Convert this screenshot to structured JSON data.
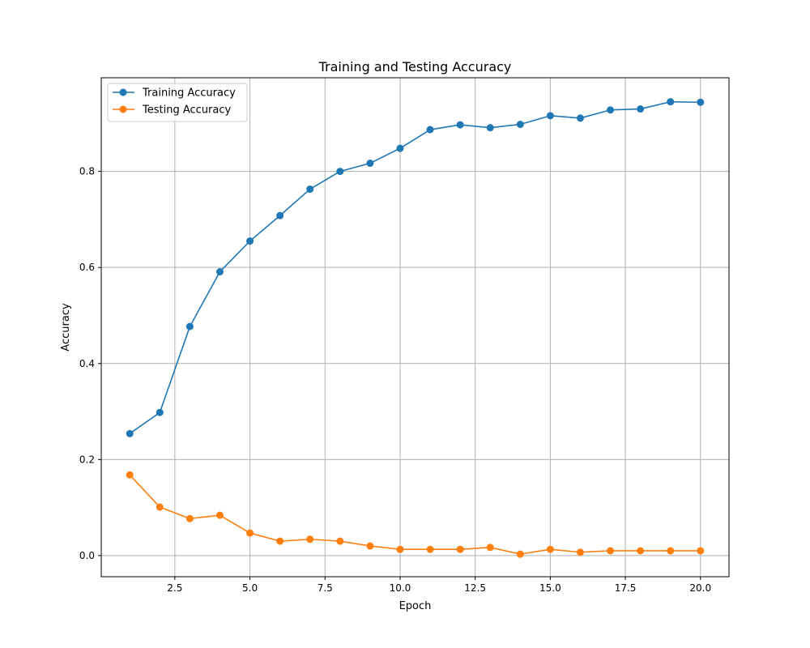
{
  "chart_data": {
    "type": "line",
    "title": "Training and Testing Accuracy",
    "xlabel": "Epoch",
    "ylabel": "Accuracy",
    "xlim": [
      0.05,
      20.95
    ],
    "ylim": [
      -0.044,
      0.995
    ],
    "xticks": [
      2.5,
      5.0,
      7.5,
      10.0,
      12.5,
      15.0,
      17.5,
      20.0
    ],
    "xtick_labels": [
      "2.5",
      "5.0",
      "7.5",
      "10.0",
      "12.5",
      "15.0",
      "17.5",
      "20.0"
    ],
    "yticks": [
      0.0,
      0.2,
      0.4,
      0.6,
      0.8
    ],
    "ytick_labels": [
      "0.0",
      "0.2",
      "0.4",
      "0.6",
      "0.8"
    ],
    "grid": true,
    "legend_position": "upper-left",
    "x": [
      1,
      2,
      3,
      4,
      5,
      6,
      7,
      8,
      9,
      10,
      11,
      12,
      13,
      14,
      15,
      16,
      17,
      18,
      19,
      20
    ],
    "series": [
      {
        "name": "Training Accuracy",
        "color": "#1f77b4",
        "marker": "circle",
        "values": [
          0.254,
          0.298,
          0.477,
          0.591,
          0.655,
          0.708,
          0.763,
          0.8,
          0.817,
          0.848,
          0.887,
          0.897,
          0.891,
          0.898,
          0.916,
          0.911,
          0.928,
          0.93,
          0.945,
          0.944
        ]
      },
      {
        "name": "Testing Accuracy",
        "color": "#ff7f0e",
        "marker": "circle",
        "values": [
          0.168,
          0.101,
          0.077,
          0.084,
          0.047,
          0.03,
          0.034,
          0.03,
          0.02,
          0.013,
          0.013,
          0.013,
          0.017,
          0.003,
          0.013,
          0.007,
          0.01,
          0.01,
          0.01,
          0.01
        ]
      }
    ]
  }
}
